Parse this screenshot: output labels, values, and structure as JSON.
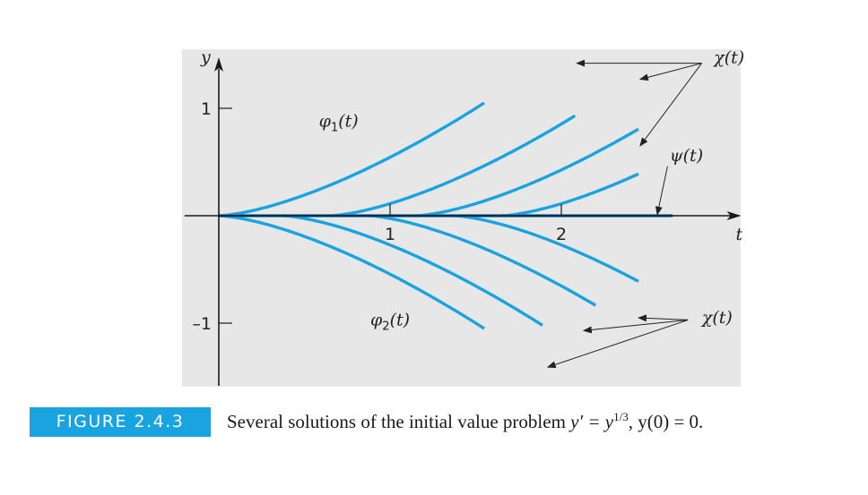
{
  "figure": {
    "label": "FIGURE 2.4.3",
    "caption": {
      "text_before": "Several solutions of the initial value problem ",
      "equation_lhs": "y′ = y",
      "exponent": "1/3",
      "text_after": ", y(0) = 0."
    }
  },
  "colors": {
    "curve": "#19a3e0",
    "panel": "#e7e7e8",
    "axis": "#1a1a1a"
  },
  "chart_data": {
    "type": "line",
    "title": "",
    "xlabel": "t",
    "ylabel": "y",
    "xlim": [
      -0.2,
      3.05
    ],
    "ylim": [
      -1.4,
      1.4
    ],
    "x_ticks": [
      {
        "value": 1,
        "label": "1"
      },
      {
        "value": 2,
        "label": "2"
      }
    ],
    "y_ticks": [
      {
        "value": 1,
        "label": "1"
      },
      {
        "value": -1,
        "label": "–1"
      }
    ],
    "grid": false,
    "equation": "y = ±[(2/3)(t − c)]^(3/2) for t ≥ c, y = 0 for t < c",
    "series": [
      {
        "id": "phi1",
        "sign": 1,
        "c": 0.0,
        "t_end": 1.55
      },
      {
        "id": "phi2",
        "sign": -1,
        "c": 0.0,
        "t_end": 1.55
      },
      {
        "id": "chi-up-a",
        "sign": 1,
        "c": 0.65,
        "t_end": 2.08
      },
      {
        "id": "chi-up-b",
        "sign": 1,
        "c": 1.15,
        "t_end": 2.45
      },
      {
        "id": "chi-up-c",
        "sign": 1,
        "c": 1.65,
        "t_end": 2.45
      },
      {
        "id": "chi-dn-a",
        "sign": -1,
        "c": 0.37,
        "t_end": 1.89
      },
      {
        "id": "chi-dn-b",
        "sign": -1,
        "c": 0.87,
        "t_end": 2.2
      },
      {
        "id": "chi-dn-c",
        "sign": -1,
        "c": 1.37,
        "t_end": 2.45
      },
      {
        "id": "psi",
        "sign": 0,
        "c": 0.0,
        "t_end": 2.65
      }
    ],
    "annotations": [
      {
        "id": "phi1-label",
        "func": "φ",
        "sub": "1",
        "arg": "(t)",
        "x": 0.7,
        "y": 0.83,
        "anchor": "middle"
      },
      {
        "id": "phi2-label",
        "func": "φ",
        "sub": "2",
        "arg": "(t)",
        "x": 1.0,
        "y": -1.02,
        "anchor": "middle"
      },
      {
        "id": "chi-top-label",
        "func": "χ",
        "sub": "",
        "arg": "(t)",
        "x": 2.98,
        "y": 1.42,
        "anchor": "middle"
      },
      {
        "id": "psi-label",
        "func": "ψ",
        "sub": "",
        "arg": "(t)",
        "x": 2.73,
        "y": 0.51,
        "anchor": "middle"
      },
      {
        "id": "chi-bottom-label",
        "func": "χ",
        "sub": "",
        "arg": "(t)",
        "x": 2.91,
        "y": -1.0,
        "anchor": "middle"
      }
    ],
    "pointers": [
      {
        "from": [
          2.82,
          1.42
        ],
        "to": [
          2.09,
          1.42
        ]
      },
      {
        "from": [
          2.82,
          1.42
        ],
        "to": [
          2.46,
          1.27
        ]
      },
      {
        "from": [
          2.82,
          1.42
        ],
        "to": [
          2.46,
          0.65
        ]
      },
      {
        "from": [
          2.62,
          0.46
        ],
        "to": [
          2.56,
          0.01
        ]
      },
      {
        "from": [
          2.74,
          -0.97
        ],
        "to": [
          2.45,
          -0.95
        ]
      },
      {
        "from": [
          2.74,
          -0.97
        ],
        "to": [
          2.13,
          -1.07
        ]
      },
      {
        "from": [
          2.74,
          -0.97
        ],
        "to": [
          1.92,
          -1.41
        ]
      }
    ]
  }
}
